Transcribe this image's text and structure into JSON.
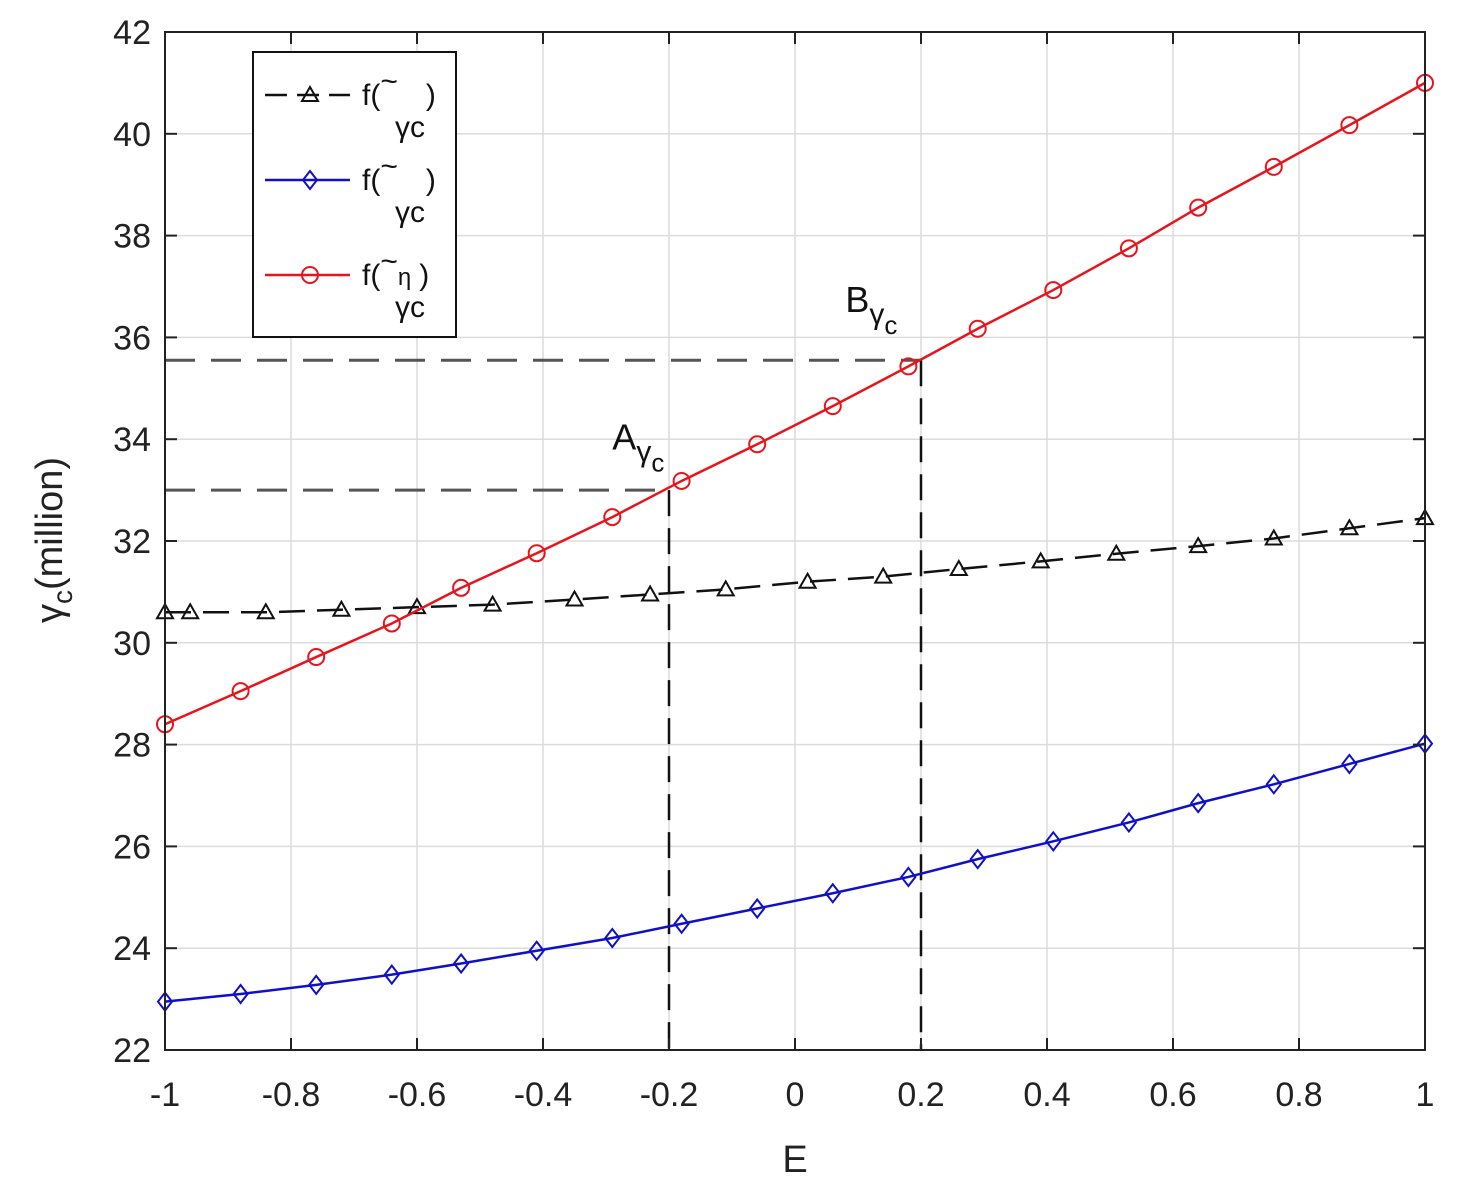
{
  "chart_data": {
    "type": "line",
    "xlabel": "E",
    "ylabel_main": "γ",
    "ylabel_sub": "c",
    "ylabel_rest": "(million)",
    "xlim": [
      -1,
      1
    ],
    "ylim": [
      22,
      42
    ],
    "xticks": [
      -1,
      -0.8,
      -0.6,
      -0.4,
      -0.2,
      0,
      0.2,
      0.4,
      0.6,
      0.8,
      1
    ],
    "yticks": [
      22,
      24,
      26,
      28,
      30,
      32,
      34,
      36,
      38,
      40,
      42
    ],
    "xtick_labels": [
      "-1",
      "-0.8",
      "-0.6",
      "-0.4",
      "-0.2",
      "0",
      "0.2",
      "0.4",
      "0.6",
      "0.8",
      "1"
    ],
    "ytick_labels": [
      "22",
      "24",
      "26",
      "28",
      "30",
      "32",
      "34",
      "36",
      "38",
      "40",
      "42"
    ],
    "grid": true,
    "legend_position": "top-left",
    "series": [
      {
        "name": "f(γc)",
        "legend_main": "f(",
        "legend_tilde": "~",
        "legend_sym": "γc",
        "legend_sup": "",
        "legend_close": ")",
        "color": "#111111",
        "line_style": "dashed",
        "marker": "triangle",
        "x": [
          -1,
          -0.96,
          -0.84,
          -0.72,
          -0.6,
          -0.48,
          -0.35,
          -0.23,
          -0.11,
          0.02,
          0.14,
          0.26,
          0.39,
          0.51,
          0.64,
          0.76,
          0.88,
          1
        ],
        "y": [
          30.6,
          30.6,
          30.6,
          30.65,
          30.7,
          30.75,
          30.85,
          30.95,
          31.05,
          31.2,
          31.3,
          31.45,
          31.6,
          31.75,
          31.9,
          32.05,
          32.25,
          32.45
        ]
      },
      {
        "name": "f(γc)",
        "legend_main": "f(",
        "legend_tilde": "~",
        "legend_sym": "γc",
        "legend_sup": "",
        "legend_close": ")",
        "color": "#1010c8",
        "line_style": "solid",
        "marker": "diamond",
        "x": [
          -1,
          -0.88,
          -0.76,
          -0.64,
          -0.53,
          -0.41,
          -0.29,
          -0.18,
          -0.06,
          0.06,
          0.18,
          0.29,
          0.41,
          0.53,
          0.64,
          0.76,
          0.88,
          1
        ],
        "y": [
          22.95,
          23.1,
          23.28,
          23.48,
          23.7,
          23.95,
          24.2,
          24.48,
          24.78,
          25.08,
          25.4,
          25.75,
          26.1,
          26.47,
          26.85,
          27.22,
          27.62,
          28.02
        ]
      },
      {
        "name": "f(γcη)",
        "legend_main": "f(",
        "legend_tilde": "~",
        "legend_sym": "γc",
        "legend_sup": "η",
        "legend_close": ")",
        "color": "#e8141c",
        "line_style": "solid",
        "marker": "circle",
        "x": [
          -1,
          -0.88,
          -0.76,
          -0.64,
          -0.53,
          -0.41,
          -0.29,
          -0.18,
          -0.06,
          0.06,
          0.18,
          0.29,
          0.41,
          0.53,
          0.64,
          0.76,
          0.88,
          1
        ],
        "y": [
          28.4,
          29.05,
          29.72,
          30.38,
          31.08,
          31.76,
          32.47,
          33.18,
          33.9,
          34.65,
          35.43,
          36.17,
          36.93,
          37.75,
          38.55,
          39.35,
          40.17,
          41.0
        ]
      }
    ],
    "guide_lines": [
      {
        "x": -0.2,
        "y": 33.0
      },
      {
        "x": 0.2,
        "y": 35.55
      }
    ],
    "annotations": [
      {
        "letter": "A",
        "sym": "γ",
        "sub": "c",
        "x": -0.29,
        "y": 33.8
      },
      {
        "letter": "B",
        "sym": "γ",
        "sub": "c",
        "x": 0.08,
        "y": 36.5
      }
    ]
  }
}
